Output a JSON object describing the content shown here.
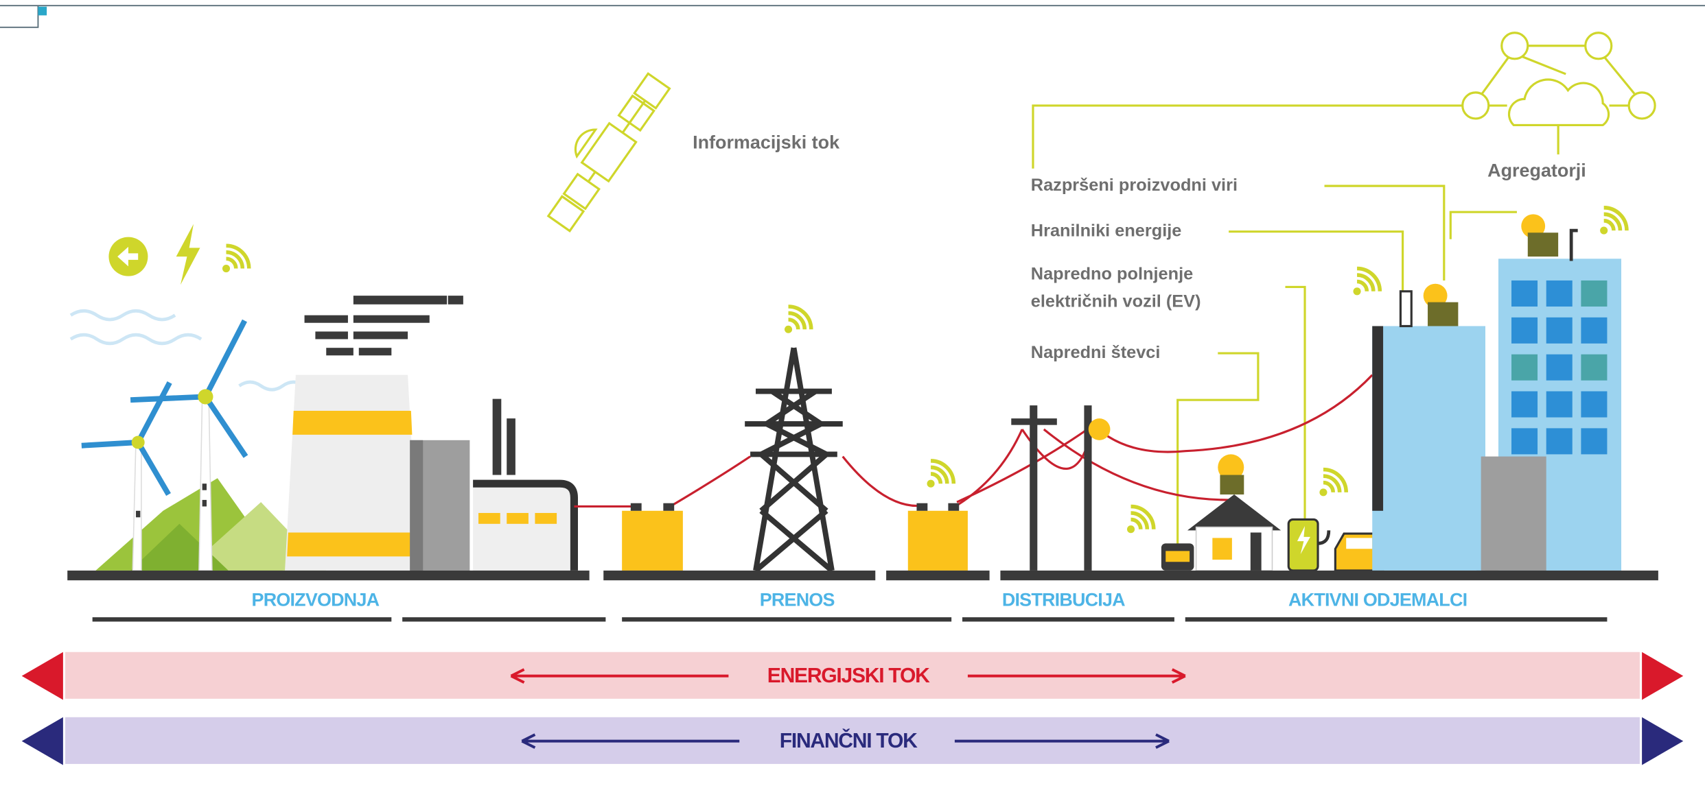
{
  "information_flow": "Informacijski tok",
  "aggregators": "Agregatorji",
  "callouts": [
    "Razpršeni proizvodni viri",
    "Hranilniki energije",
    "Napredno polnjenje",
    "električnih vozil (EV)",
    "Napredni števci"
  ],
  "sections": [
    "PROIZVODNJA",
    "PRENOS",
    "DISTRIBUCIJA",
    "AKTIVNI ODJEMALCI"
  ],
  "flows": [
    "ENERGIJSKI TOK",
    "FINANČNI TOK"
  ]
}
